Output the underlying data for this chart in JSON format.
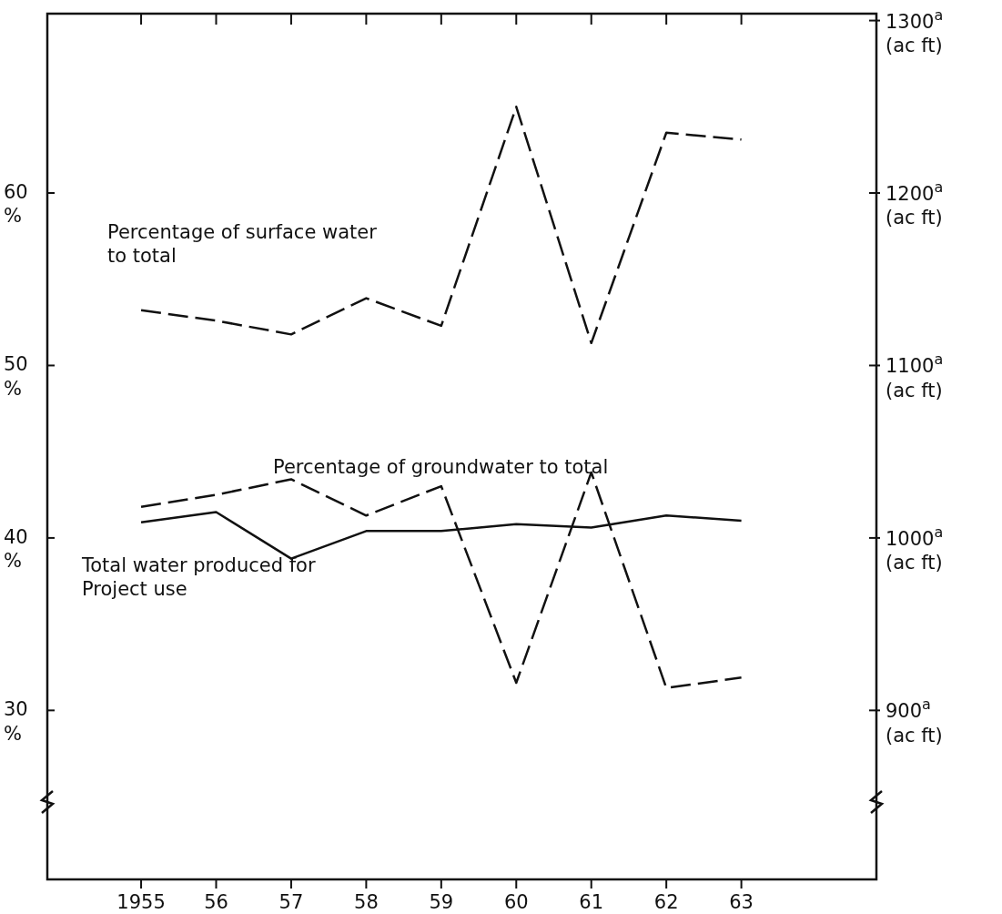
{
  "chart_data": {
    "type": "line",
    "x": [
      1955,
      1956,
      1957,
      1958,
      1959,
      1960,
      1961,
      1962,
      1963
    ],
    "xlim": [
      1953.75,
      1964.8
    ],
    "xticks": [
      {
        "value": 1955,
        "label": "1955"
      },
      {
        "value": 1956,
        "label": "56"
      },
      {
        "value": 1957,
        "label": "57"
      },
      {
        "value": 1958,
        "label": "58"
      },
      {
        "value": 1959,
        "label": "59"
      },
      {
        "value": 1960,
        "label": "60"
      },
      {
        "value": 1961,
        "label": "61"
      },
      {
        "value": 1962,
        "label": "62"
      },
      {
        "value": 1963,
        "label": "63"
      }
    ],
    "ylim": [
      20.2,
      70.4
    ],
    "yticks": [
      {
        "value": 30,
        "label": "30\n%"
      },
      {
        "value": 40,
        "label": "40\n%"
      },
      {
        "value": 50,
        "label": "50\n%"
      },
      {
        "value": 60,
        "label": "60\n%"
      }
    ],
    "y2lim": [
      802,
      1304
    ],
    "y2ticks": [
      {
        "value": 900,
        "label": "900$^{a}$\n(ac ft)"
      },
      {
        "value": 1000,
        "label": "1000$^{a}$\n(ac ft)"
      },
      {
        "value": 1100,
        "label": "1100$^{a}$\n(ac ft)"
      },
      {
        "value": 1200,
        "label": "1200$^{a}$\n(ac ft)"
      },
      {
        "value": 1300,
        "label": "1300$^{a}$\n(ac ft)"
      }
    ],
    "grid": false,
    "marker": "none",
    "series": [
      {
        "name": "Percentage of surface water\nto total",
        "color": "#111111",
        "line_style": "dashed",
        "values": [
          53.2,
          52.6,
          51.8,
          53.9,
          52.3,
          65.0,
          51.3,
          63.5,
          63.1
        ]
      },
      {
        "name": "Percentage of groundwater to total",
        "color": "#111111",
        "line_style": "dashed",
        "values": [
          41.8,
          42.5,
          43.4,
          41.3,
          43.0,
          31.6,
          43.8,
          31.3,
          31.9
        ]
      },
      {
        "name": "Total water produced for\nProject use",
        "color": "#111111",
        "line_style": "solid",
        "axis": "y2",
        "values": [
          1009,
          1015,
          988,
          1004,
          1004,
          1008,
          1006,
          1013,
          1010
        ]
      }
    ]
  }
}
